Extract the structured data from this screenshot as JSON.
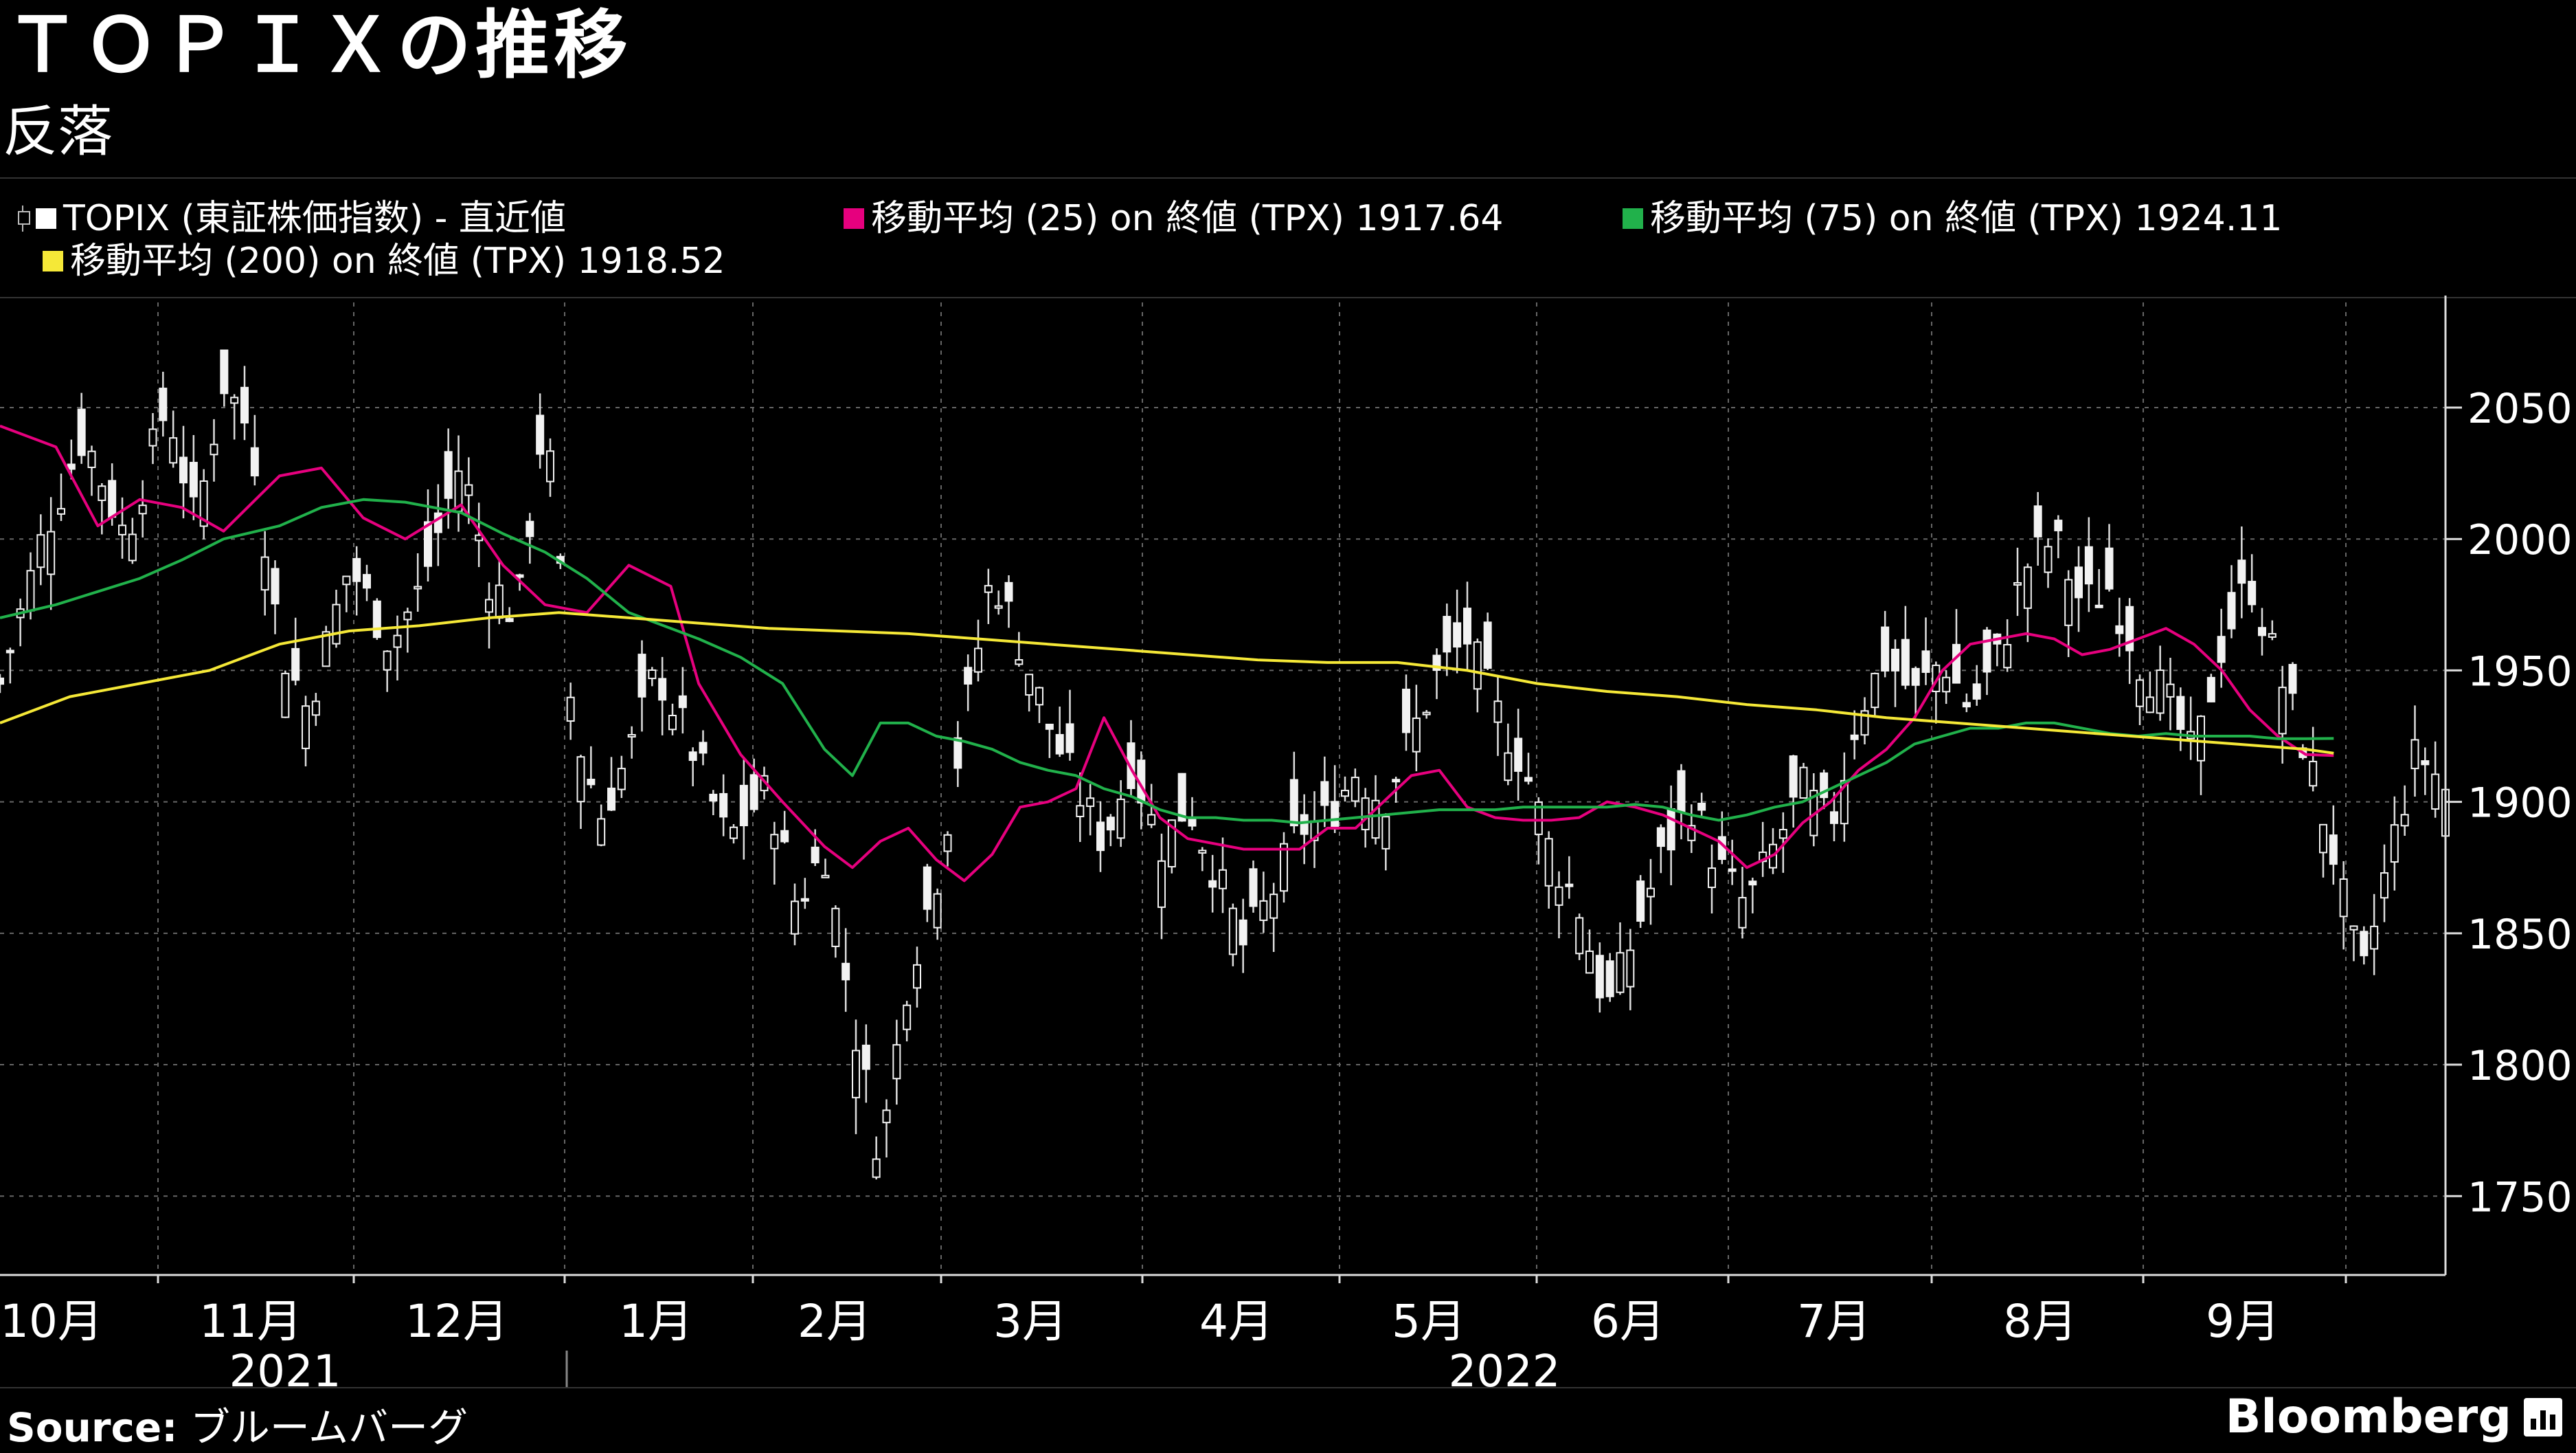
{
  "header": {
    "title": "ＴＯＰＩＸの推移",
    "subtitle": "反落"
  },
  "legend": {
    "items": [
      {
        "label": "TOPIX (東証株価指数) - 直近値",
        "color": "#ffffff",
        "kind": "candle"
      },
      {
        "label": "移動平均 (25) on 終値 (TPX) 1917.64",
        "color": "#e6007e",
        "kind": "line"
      },
      {
        "label": "移動平均 (75) on 終値 (TPX) 1924.11",
        "color": "#21b14b",
        "kind": "line"
      },
      {
        "label": "移動平均 (200) on 終値 (TPX) 1918.52",
        "color": "#f5e837",
        "kind": "line"
      }
    ]
  },
  "chart_data": {
    "type": "line",
    "title": "ＴＯＰＩＸの推移",
    "subtitle": "反落",
    "x_tick_labels": [
      "10月",
      "11月",
      "12月",
      "1月",
      "2月",
      "3月",
      "4月",
      "5月",
      "6月",
      "7月",
      "8月",
      "9月"
    ],
    "year_labels": [
      "2021",
      "2022"
    ],
    "y_ticks": [
      1750,
      1800,
      1850,
      1900,
      1950,
      2000,
      2050
    ],
    "ylim": [
      1720,
      2090
    ],
    "grid": true,
    "y_axis_side": "right",
    "series": [
      {
        "name": "TOPIX (東証株価指数) - 直近値",
        "kind": "candlestick",
        "color": "#ffffff",
        "close_path": [
          [
            0,
            1945
          ],
          [
            0.03,
            2000
          ],
          [
            0.06,
            2040
          ],
          [
            0.09,
            2000
          ],
          [
            0.12,
            2052
          ],
          [
            0.14,
            2005
          ],
          [
            0.16,
            2060
          ],
          [
            0.18,
            2040
          ],
          [
            0.2,
            1960
          ],
          [
            0.22,
            1935
          ],
          [
            0.25,
            1990
          ],
          [
            0.28,
            1960
          ],
          [
            0.3,
            1980
          ],
          [
            0.33,
            2030
          ],
          [
            0.35,
            1985
          ],
          [
            0.37,
            1970
          ],
          [
            0.39,
            2050
          ],
          [
            0.41,
            1930
          ],
          [
            0.43,
            1895
          ],
          [
            0.45,
            1918
          ],
          [
            0.47,
            1950
          ],
          [
            0.5,
            1915
          ],
          [
            0.52,
            1885
          ],
          [
            0.55,
            1905
          ],
          [
            0.57,
            1860
          ],
          [
            0.59,
            1883
          ],
          [
            0.61,
            1818
          ],
          [
            0.63,
            1765
          ],
          [
            0.65,
            1835
          ],
          [
            0.67,
            1870
          ],
          [
            0.69,
            1930
          ],
          [
            0.71,
            1988
          ],
          [
            0.73,
            1960
          ],
          [
            0.75,
            1930
          ],
          [
            0.77,
            1905
          ],
          [
            0.79,
            1885
          ],
          [
            0.81,
            1915
          ],
          [
            0.83,
            1883
          ],
          [
            0.85,
            1900
          ],
          [
            0.87,
            1873
          ],
          [
            0.89,
            1845
          ],
          [
            0.91,
            1865
          ],
          [
            0.93,
            1890
          ],
          [
            0.95,
            1893
          ],
          [
            0.97,
            1912
          ],
          [
            0.99,
            1900
          ],
          [
            1.01,
            1925
          ],
          [
            1.03,
            1950
          ],
          [
            1.05,
            1962
          ],
          [
            1.07,
            1935
          ],
          [
            1.09,
            1915
          ],
          [
            1.11,
            1880
          ],
          [
            1.13,
            1860
          ],
          [
            1.15,
            1820
          ],
          [
            1.17,
            1850
          ],
          [
            1.19,
            1880
          ],
          [
            1.21,
            1900
          ],
          [
            1.23,
            1875
          ],
          [
            1.25,
            1860
          ],
          [
            1.27,
            1883
          ],
          [
            1.29,
            1905
          ],
          [
            1.31,
            1890
          ],
          [
            1.33,
            1935
          ],
          [
            1.35,
            1955
          ],
          [
            1.37,
            1940
          ],
          [
            1.39,
            1955
          ],
          [
            1.41,
            1935
          ],
          [
            1.43,
            1955
          ],
          [
            1.45,
            1990
          ],
          [
            1.47,
            2000
          ],
          [
            1.49,
            1975
          ],
          [
            1.51,
            1982
          ],
          [
            1.53,
            1955
          ],
          [
            1.55,
            1940
          ],
          [
            1.57,
            1915
          ],
          [
            1.59,
            1960
          ],
          [
            1.61,
            1985
          ],
          [
            1.63,
            1950
          ],
          [
            1.65,
            1920
          ],
          [
            1.67,
            1880
          ],
          [
            1.69,
            1830
          ],
          [
            1.71,
            1880
          ],
          [
            1.73,
            1920
          ],
          [
            1.75,
            1905
          ]
        ]
      },
      {
        "name": "移動平均 (25) on 終値 (TPX) 1917.64",
        "color": "#e6007e",
        "last_value": 1917.64,
        "path": [
          [
            0,
            2043
          ],
          [
            0.04,
            2035
          ],
          [
            0.07,
            2005
          ],
          [
            0.1,
            2015
          ],
          [
            0.13,
            2012
          ],
          [
            0.16,
            2003
          ],
          [
            0.2,
            2024
          ],
          [
            0.23,
            2027
          ],
          [
            0.26,
            2008
          ],
          [
            0.29,
            2000
          ],
          [
            0.33,
            2013
          ],
          [
            0.36,
            1990
          ],
          [
            0.39,
            1975
          ],
          [
            0.42,
            1972
          ],
          [
            0.45,
            1990
          ],
          [
            0.48,
            1982
          ],
          [
            0.5,
            1945
          ],
          [
            0.53,
            1918
          ],
          [
            0.56,
            1900
          ],
          [
            0.59,
            1883
          ],
          [
            0.61,
            1875
          ],
          [
            0.63,
            1885
          ],
          [
            0.65,
            1890
          ],
          [
            0.67,
            1878
          ],
          [
            0.69,
            1870
          ],
          [
            0.71,
            1880
          ],
          [
            0.73,
            1898
          ],
          [
            0.75,
            1900
          ],
          [
            0.77,
            1905
          ],
          [
            0.79,
            1932
          ],
          [
            0.81,
            1912
          ],
          [
            0.83,
            1894
          ],
          [
            0.85,
            1886
          ],
          [
            0.87,
            1884
          ],
          [
            0.89,
            1882
          ],
          [
            0.91,
            1882
          ],
          [
            0.93,
            1882
          ],
          [
            0.95,
            1890
          ],
          [
            0.97,
            1890
          ],
          [
            0.99,
            1900
          ],
          [
            1.01,
            1910
          ],
          [
            1.03,
            1912
          ],
          [
            1.05,
            1898
          ],
          [
            1.07,
            1894
          ],
          [
            1.09,
            1893
          ],
          [
            1.11,
            1893
          ],
          [
            1.13,
            1894
          ],
          [
            1.15,
            1900
          ],
          [
            1.17,
            1898
          ],
          [
            1.19,
            1895
          ],
          [
            1.21,
            1890
          ],
          [
            1.23,
            1885
          ],
          [
            1.25,
            1875
          ],
          [
            1.27,
            1880
          ],
          [
            1.29,
            1892
          ],
          [
            1.31,
            1900
          ],
          [
            1.33,
            1912
          ],
          [
            1.35,
            1920
          ],
          [
            1.37,
            1932
          ],
          [
            1.39,
            1950
          ],
          [
            1.41,
            1960
          ],
          [
            1.43,
            1962
          ],
          [
            1.45,
            1964
          ],
          [
            1.47,
            1962
          ],
          [
            1.49,
            1956
          ],
          [
            1.51,
            1958
          ],
          [
            1.53,
            1962
          ],
          [
            1.55,
            1966
          ],
          [
            1.57,
            1960
          ],
          [
            1.59,
            1950
          ],
          [
            1.61,
            1935
          ],
          [
            1.63,
            1925
          ],
          [
            1.65,
            1918
          ],
          [
            1.67,
            1917.64
          ]
        ]
      },
      {
        "name": "移動平均 (75) on 終値 (TPX) 1924.11",
        "color": "#21b14b",
        "last_value": 1924.11,
        "path": [
          [
            0,
            1970
          ],
          [
            0.04,
            1975
          ],
          [
            0.07,
            1980
          ],
          [
            0.1,
            1985
          ],
          [
            0.13,
            1992
          ],
          [
            0.16,
            2000
          ],
          [
            0.2,
            2005
          ],
          [
            0.23,
            2012
          ],
          [
            0.26,
            2015
          ],
          [
            0.29,
            2014
          ],
          [
            0.33,
            2010
          ],
          [
            0.36,
            2002
          ],
          [
            0.39,
            1995
          ],
          [
            0.42,
            1985
          ],
          [
            0.45,
            1972
          ],
          [
            0.48,
            1966
          ],
          [
            0.5,
            1962
          ],
          [
            0.53,
            1955
          ],
          [
            0.56,
            1945
          ],
          [
            0.59,
            1920
          ],
          [
            0.61,
            1910
          ],
          [
            0.63,
            1930
          ],
          [
            0.65,
            1930
          ],
          [
            0.67,
            1925
          ],
          [
            0.69,
            1923
          ],
          [
            0.71,
            1920
          ],
          [
            0.73,
            1915
          ],
          [
            0.75,
            1912
          ],
          [
            0.77,
            1910
          ],
          [
            0.79,
            1905
          ],
          [
            0.81,
            1902
          ],
          [
            0.83,
            1897
          ],
          [
            0.85,
            1894
          ],
          [
            0.87,
            1894
          ],
          [
            0.89,
            1893
          ],
          [
            0.91,
            1893
          ],
          [
            0.93,
            1892
          ],
          [
            0.95,
            1893
          ],
          [
            0.97,
            1894
          ],
          [
            0.99,
            1895
          ],
          [
            1.01,
            1896
          ],
          [
            1.03,
            1897
          ],
          [
            1.05,
            1897
          ],
          [
            1.07,
            1897
          ],
          [
            1.09,
            1898
          ],
          [
            1.11,
            1898
          ],
          [
            1.13,
            1898
          ],
          [
            1.15,
            1898
          ],
          [
            1.17,
            1899
          ],
          [
            1.19,
            1898
          ],
          [
            1.21,
            1895
          ],
          [
            1.23,
            1893
          ],
          [
            1.25,
            1895
          ],
          [
            1.27,
            1898
          ],
          [
            1.29,
            1900
          ],
          [
            1.31,
            1905
          ],
          [
            1.33,
            1910
          ],
          [
            1.35,
            1915
          ],
          [
            1.37,
            1922
          ],
          [
            1.39,
            1925
          ],
          [
            1.41,
            1928
          ],
          [
            1.43,
            1928
          ],
          [
            1.45,
            1930
          ],
          [
            1.47,
            1930
          ],
          [
            1.49,
            1928
          ],
          [
            1.51,
            1926
          ],
          [
            1.53,
            1925
          ],
          [
            1.55,
            1926
          ],
          [
            1.57,
            1925
          ],
          [
            1.59,
            1925
          ],
          [
            1.61,
            1925
          ],
          [
            1.63,
            1924
          ],
          [
            1.65,
            1924
          ],
          [
            1.67,
            1924.11
          ]
        ]
      },
      {
        "name": "移動平均 (200) on 終値 (TPX) 1918.52",
        "color": "#f5e837",
        "last_value": 1918.52,
        "path": [
          [
            0,
            1930
          ],
          [
            0.05,
            1940
          ],
          [
            0.1,
            1945
          ],
          [
            0.15,
            1950
          ],
          [
            0.2,
            1960
          ],
          [
            0.25,
            1965
          ],
          [
            0.3,
            1967
          ],
          [
            0.35,
            1970
          ],
          [
            0.4,
            1972
          ],
          [
            0.45,
            1970
          ],
          [
            0.5,
            1968
          ],
          [
            0.55,
            1966
          ],
          [
            0.6,
            1965
          ],
          [
            0.65,
            1964
          ],
          [
            0.7,
            1962
          ],
          [
            0.75,
            1960
          ],
          [
            0.8,
            1958
          ],
          [
            0.85,
            1956
          ],
          [
            0.9,
            1954
          ],
          [
            0.95,
            1953
          ],
          [
            1.0,
            1953
          ],
          [
            1.05,
            1950
          ],
          [
            1.1,
            1945
          ],
          [
            1.15,
            1942
          ],
          [
            1.2,
            1940
          ],
          [
            1.25,
            1937
          ],
          [
            1.3,
            1935
          ],
          [
            1.35,
            1932
          ],
          [
            1.4,
            1930
          ],
          [
            1.45,
            1928
          ],
          [
            1.5,
            1926
          ],
          [
            1.55,
            1924
          ],
          [
            1.6,
            1922
          ],
          [
            1.65,
            1920
          ],
          [
            1.67,
            1918.52
          ]
        ]
      }
    ]
  },
  "footer": {
    "source_label": "Source:",
    "source_text": "ブルームバーグ",
    "brand": "Bloomberg"
  }
}
